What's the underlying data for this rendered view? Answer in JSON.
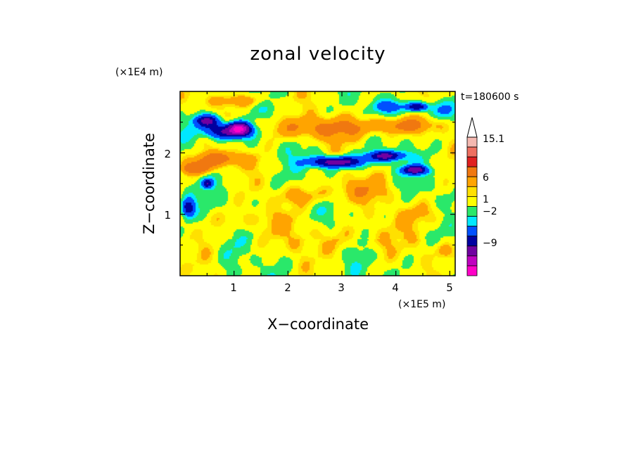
{
  "chart_data": {
    "type": "heatmap",
    "title": "zonal velocity",
    "xlabel": "X−coordinate",
    "ylabel": "Z−coordinate",
    "x_unit": "(×1E5 m)",
    "y_unit": "(×1E4 m)",
    "time_label": "t=180600 s",
    "xlim": [
      0,
      5.1
    ],
    "ylim": [
      0,
      3.0
    ],
    "x_ticks": [
      "1",
      "2",
      "3",
      "4",
      "5"
    ],
    "y_ticks": [
      "1",
      "2"
    ],
    "x_tick_values": [
      1,
      2,
      3,
      4,
      5
    ],
    "y_tick_values": [
      1,
      2
    ],
    "colorbar": {
      "labels": [
        "15.1",
        "6",
        "1",
        "−2",
        "−9"
      ],
      "label_values": [
        15.1,
        6,
        1,
        -2,
        -9
      ],
      "levels": [
        {
          "value": 12,
          "color": "#f4b8b0"
        },
        {
          "value": 9,
          "color": "#ee6f60"
        },
        {
          "value": 6,
          "color": "#e02020"
        },
        {
          "value": 3,
          "color": "#f07810"
        },
        {
          "value": 1.5,
          "color": "#ffa400"
        },
        {
          "value": 1,
          "color": "#ffe000"
        },
        {
          "value": 0,
          "color": "#ffff00"
        },
        {
          "value": -1,
          "color": "#2ae86a"
        },
        {
          "value": -2,
          "color": "#00e8ff"
        },
        {
          "value": -4,
          "color": "#0050ff"
        },
        {
          "value": -6,
          "color": "#0000a0"
        },
        {
          "value": -9,
          "color": "#7000a0"
        },
        {
          "value": -12,
          "color": "#c000c0"
        },
        {
          "value": -15,
          "color": "#ff00c8"
        }
      ],
      "extend_top_color": "#ffffff"
    },
    "features": [
      {
        "x": 0.9,
        "z": 2.35,
        "rx": 0.45,
        "rz": 0.12,
        "u": -8
      },
      {
        "x": 0.5,
        "z": 2.52,
        "rx": 0.25,
        "rz": 0.1,
        "u": -7
      },
      {
        "x": 1.1,
        "z": 2.4,
        "rx": 0.18,
        "rz": 0.1,
        "u": -9
      },
      {
        "x": 2.9,
        "z": 1.85,
        "rx": 0.5,
        "rz": 0.09,
        "u": -8
      },
      {
        "x": 3.8,
        "z": 1.95,
        "rx": 0.35,
        "rz": 0.08,
        "u": -7
      },
      {
        "x": 4.35,
        "z": 1.72,
        "rx": 0.25,
        "rz": 0.07,
        "u": -7
      },
      {
        "x": 4.4,
        "z": 2.75,
        "rx": 0.2,
        "rz": 0.07,
        "u": -6
      },
      {
        "x": 0.15,
        "z": 1.1,
        "rx": 0.12,
        "rz": 0.15,
        "u": -6
      },
      {
        "x": 0.5,
        "z": 1.5,
        "rx": 0.1,
        "rz": 0.07,
        "u": -5
      },
      {
        "x": 0.7,
        "z": 1.9,
        "rx": 0.5,
        "rz": 0.12,
        "u": 4
      },
      {
        "x": 0.3,
        "z": 1.75,
        "rx": 0.3,
        "rz": 0.1,
        "u": 5
      },
      {
        "x": 2.6,
        "z": 2.4,
        "rx": 1.3,
        "rz": 0.18,
        "u": 3
      },
      {
        "x": 1.1,
        "z": 2.85,
        "rx": 0.6,
        "rz": 0.1,
        "u": 2
      },
      {
        "x": 3.3,
        "z": 1.4,
        "rx": 0.6,
        "rz": 0.2,
        "u": 2
      },
      {
        "x": 2.3,
        "z": 1.3,
        "rx": 0.5,
        "rz": 0.15,
        "u": 1.8
      },
      {
        "x": 4.1,
        "z": 2.45,
        "rx": 0.6,
        "rz": 0.12,
        "u": 3
      },
      {
        "x": 4.8,
        "z": 2.7,
        "rx": 0.25,
        "rz": 0.15,
        "u": -3
      },
      {
        "x": 3.9,
        "z": 2.75,
        "rx": 0.3,
        "rz": 0.1,
        "u": -3
      },
      {
        "x": 1.2,
        "z": 0.9,
        "rx": 0.8,
        "rz": 0.2,
        "u": 1.2
      },
      {
        "x": 3.0,
        "z": 0.6,
        "rx": 1.2,
        "rz": 0.25,
        "u": 1.1
      },
      {
        "x": 4.5,
        "z": 1.0,
        "rx": 0.5,
        "rz": 0.2,
        "u": 1.6
      },
      {
        "x": 4.9,
        "z": 0.4,
        "rx": 0.2,
        "rz": 0.15,
        "u": 2
      }
    ]
  }
}
